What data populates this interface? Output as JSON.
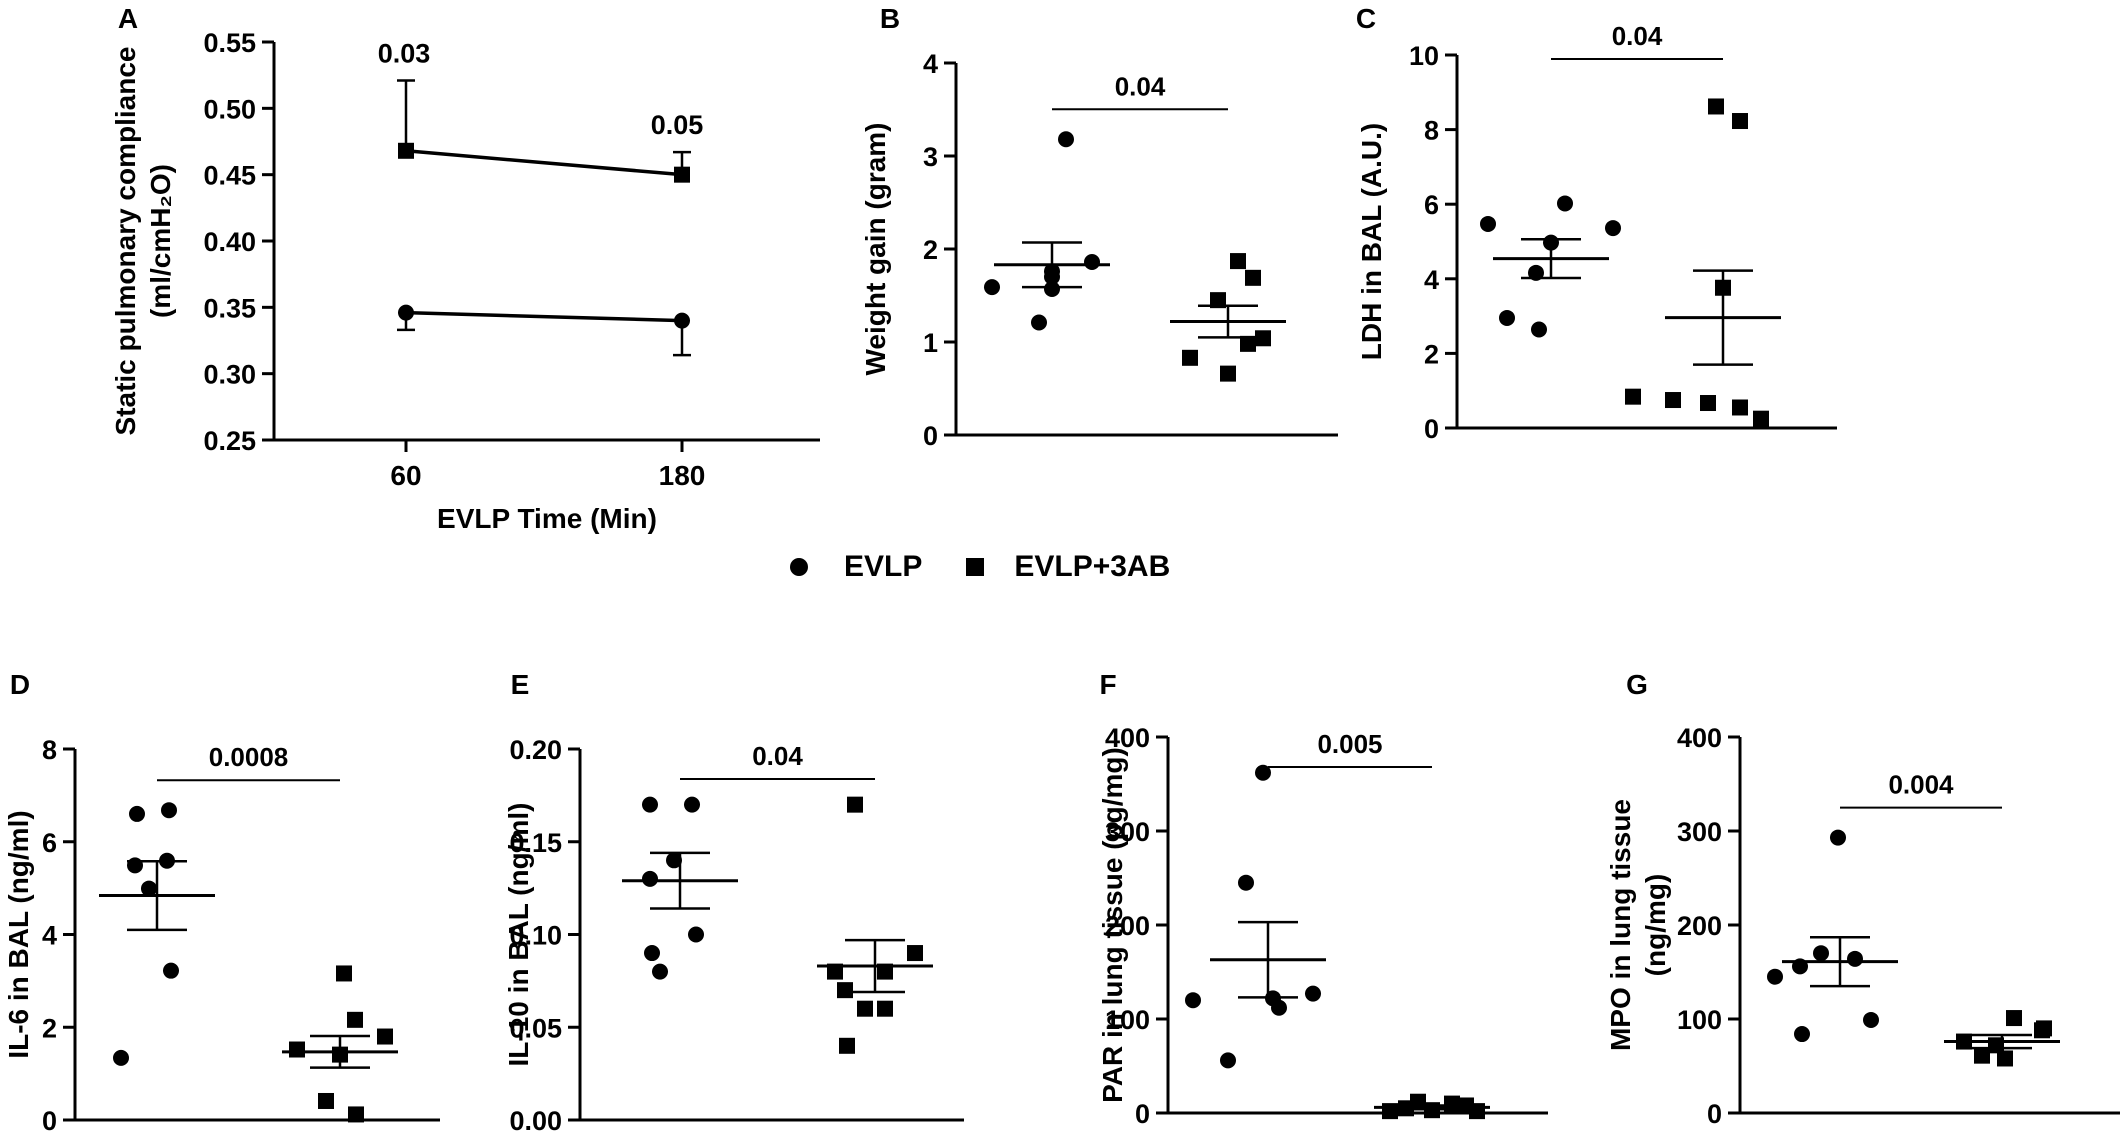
{
  "legend": {
    "series": [
      "EVLP",
      "EVLP+3AB"
    ]
  },
  "chart_data": [
    {
      "panel": "A",
      "type": "line",
      "xlabel": "EVLP Time (Min)",
      "ylabel_line1": "Static pulmonary compliance",
      "ylabel_line2": "(ml/cmH₂O)",
      "x": [
        "60",
        "180"
      ],
      "ylim": [
        0.25,
        0.55
      ],
      "yticks": [
        "0.25",
        "0.30",
        "0.35",
        "0.40",
        "0.45",
        "0.50",
        "0.55"
      ],
      "series": [
        {
          "name": "EVLP",
          "marker": "circle",
          "mean": [
            0.346,
            0.34
          ],
          "error": [
            0.013,
            0.026
          ],
          "error_dir": "down"
        },
        {
          "name": "EVLP+3AB",
          "marker": "square",
          "mean": [
            0.468,
            0.45
          ],
          "error": [
            0.053,
            0.017
          ],
          "error_dir": "up"
        }
      ],
      "annotations": [
        {
          "x": "60",
          "text": "0.03"
        },
        {
          "x": "180",
          "text": "0.05"
        }
      ]
    },
    {
      "panel": "B",
      "type": "scatter",
      "ylabel": "Weight gain (gram)",
      "ylim": [
        0,
        4
      ],
      "yticks": [
        "0",
        "1",
        "2",
        "3",
        "4"
      ],
      "groups": [
        {
          "name": "EVLP",
          "marker": "circle",
          "points": [
            3.18,
            1.86,
            1.76,
            1.7,
            1.59,
            1.57,
            1.21
          ],
          "mean": 1.83,
          "sem": 0.24
        },
        {
          "name": "EVLP+3AB",
          "marker": "square",
          "points": [
            1.87,
            1.69,
            1.45,
            1.04,
            0.98,
            0.83,
            0.66
          ],
          "mean": 1.22,
          "sem": 0.17
        }
      ],
      "p_value": "0.04"
    },
    {
      "panel": "C",
      "type": "scatter",
      "ylabel": "LDH in BAL (A.U.)",
      "ylim": [
        0,
        10
      ],
      "yticks": [
        "0",
        "2",
        "4",
        "6",
        "8",
        "10"
      ],
      "groups": [
        {
          "name": "EVLP",
          "marker": "circle",
          "points": [
            6.02,
            5.47,
            5.36,
            4.97,
            4.16,
            2.95,
            2.64
          ],
          "mean": 4.54,
          "sem": 0.52
        },
        {
          "name": "EVLP+3AB",
          "marker": "square",
          "points": [
            8.62,
            8.23,
            3.76,
            0.84,
            0.75,
            0.67,
            0.55,
            0.25
          ],
          "mean": 2.96,
          "sem": 1.26
        }
      ],
      "p_value": "0.04"
    },
    {
      "panel": "D",
      "type": "scatter",
      "ylabel": "IL-6 in BAL (ng/ml)",
      "ylim": [
        0,
        8
      ],
      "yticks": [
        "0",
        "2",
        "4",
        "6",
        "8"
      ],
      "groups": [
        {
          "name": "EVLP",
          "marker": "circle",
          "points": [
            6.68,
            6.6,
            5.59,
            5.49,
            4.99,
            3.22,
            1.34
          ],
          "mean": 4.84,
          "sem": 0.74
        },
        {
          "name": "EVLP+3AB",
          "marker": "square",
          "points": [
            3.16,
            2.16,
            1.8,
            1.52,
            1.41,
            0.41,
            0.12
          ],
          "mean": 1.47,
          "sem": 0.34
        }
      ],
      "p_value": "0.0008"
    },
    {
      "panel": "E",
      "type": "scatter",
      "ylabel": "IL-10 in BAL (ng/ml)",
      "ylim": [
        0,
        0.2
      ],
      "yticks": [
        "0.00",
        "0.05",
        "0.10",
        "0.15",
        "0.20"
      ],
      "groups": [
        {
          "name": "EVLP",
          "marker": "circle",
          "points": [
            0.17,
            0.17,
            0.14,
            0.13,
            0.1,
            0.09,
            0.08
          ],
          "mean": 0.129,
          "sem": 0.015
        },
        {
          "name": "EVLP+3AB",
          "marker": "square",
          "points": [
            0.17,
            0.09,
            0.08,
            0.08,
            0.07,
            0.06,
            0.06,
            0.04
          ],
          "mean": 0.083,
          "sem": 0.014
        }
      ],
      "p_value": "0.04"
    },
    {
      "panel": "F",
      "type": "scatter",
      "ylabel": "PAR in lung tissue (pg/mg)",
      "ylim": [
        0,
        400
      ],
      "yticks": [
        "0",
        "100",
        "200",
        "300",
        "400"
      ],
      "groups": [
        {
          "name": "EVLP",
          "marker": "circle",
          "points": [
            362,
            245,
            127,
            122,
            120,
            112,
            56
          ],
          "mean": 163,
          "sem": 40
        },
        {
          "name": "EVLP+3AB",
          "marker": "square",
          "points": [
            12,
            10,
            8,
            5,
            3,
            2,
            2
          ],
          "mean": 6,
          "sem": 2
        }
      ],
      "p_value": "0.005"
    },
    {
      "panel": "G",
      "type": "scatter",
      "ylabel_line1": "MPO in lung tissue",
      "ylabel_line2": "(ng/mg)",
      "ylim": [
        0,
        400
      ],
      "yticks": [
        "0",
        "100",
        "200",
        "300",
        "400"
      ],
      "groups": [
        {
          "name": "EVLP",
          "marker": "circle",
          "points": [
            293,
            170,
            164,
            156,
            145,
            99,
            84
          ],
          "mean": 161,
          "sem": 26
        },
        {
          "name": "EVLP+3AB",
          "marker": "square",
          "points": [
            101,
            90,
            88,
            76,
            72,
            61,
            58
          ],
          "mean": 76,
          "sem": 7
        }
      ],
      "p_value": "0.004"
    }
  ]
}
